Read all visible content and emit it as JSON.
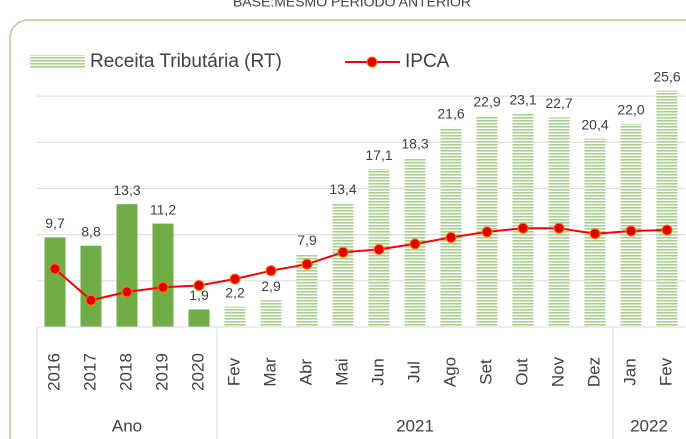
{
  "chart_data": {
    "type": "bar_line",
    "title": "BASE:MESMO PERÍODO ANTERIOR",
    "categories": [
      "2016",
      "2017",
      "2018",
      "2019",
      "2020",
      "Fev",
      "Mar",
      "Abr",
      "Mai",
      "Jun",
      "Jul",
      "Ago",
      "Set",
      "Out",
      "Nov",
      "Dez",
      "Jan",
      "Fev"
    ],
    "groups": [
      {
        "label": "Ano",
        "start": 0,
        "end": 4
      },
      {
        "label": "2021",
        "start": 5,
        "end": 15
      },
      {
        "label": "2022",
        "start": 16,
        "end": 17
      }
    ],
    "series": [
      {
        "name": "Receita Tributária (RT)",
        "type": "bar",
        "color": "#70ad47",
        "stripe_color": "#a9d18e",
        "patterns": [
          "solid",
          "solid",
          "solid",
          "solid",
          "solid",
          "striped",
          "striped",
          "striped",
          "striped",
          "striped",
          "striped",
          "striped",
          "striped",
          "striped",
          "striped",
          "striped",
          "striped",
          "striped"
        ],
        "values": [
          9.7,
          8.8,
          13.3,
          11.2,
          1.9,
          2.2,
          2.9,
          7.9,
          13.4,
          17.1,
          18.3,
          21.6,
          22.9,
          23.1,
          22.7,
          20.4,
          22.0,
          25.6
        ],
        "value_labels": [
          "9,7",
          "8,8",
          "13,3",
          "11,2",
          "1,9",
          "2,2",
          "2,9",
          "7,9",
          "13,4",
          "17,1",
          "18,3",
          "21,6",
          "22,9",
          "23,1",
          "22,7",
          "20,4",
          "22,0",
          "25,6"
        ]
      },
      {
        "name": "IPCA",
        "type": "line",
        "color": "#ff0000",
        "values": [
          6.3,
          2.9,
          3.8,
          4.3,
          4.5,
          5.2,
          6.1,
          6.8,
          8.1,
          8.4,
          9.0,
          9.7,
          10.3,
          10.7,
          10.7,
          10.1,
          10.4,
          10.5
        ]
      }
    ],
    "ylim": [
      0,
      30
    ],
    "yticks": [
      0,
      5,
      10,
      15,
      20,
      25
    ],
    "grid": true,
    "legend": "top"
  }
}
